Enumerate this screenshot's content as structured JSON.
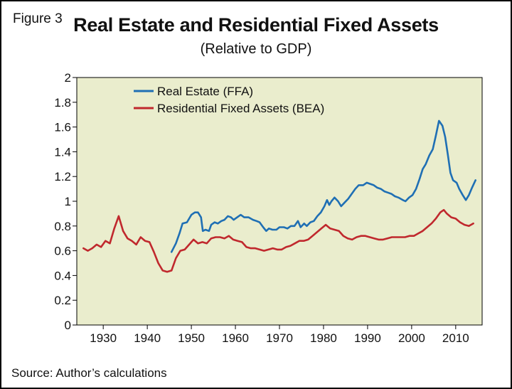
{
  "figure_label": "Figure 3",
  "title": "Real Estate and Residential Fixed Assets",
  "subtitle": "(Relative to GDP)",
  "source": "Source: Author’s calculations",
  "chart_data": {
    "type": "line",
    "ylim": [
      0,
      2
    ],
    "xlim": [
      1924,
      2016
    ],
    "y_ticks": [
      0,
      0.2,
      0.4,
      0.6,
      0.8,
      1,
      1.2,
      1.4,
      1.6,
      1.8,
      2
    ],
    "y_tick_labels": [
      "0",
      "0.2",
      "0.4",
      "0.6",
      "0.8",
      "1",
      "1.2",
      "1.4",
      "1.6",
      "1.8",
      "2"
    ],
    "x_ticks": [
      1930,
      1940,
      1950,
      1960,
      1970,
      1980,
      1990,
      2000,
      2010
    ],
    "x_tick_labels": [
      "1930",
      "1940",
      "1950",
      "1960",
      "1970",
      "1980",
      "1990",
      "2000",
      "2010"
    ],
    "legend_position": "top-left",
    "plot_background": "#eaedcd",
    "series": [
      {
        "name": "Real Estate (FFA)",
        "color": "#1f6fb4",
        "points": [
          [
            1945.5,
            0.59
          ],
          [
            1946.5,
            0.66
          ],
          [
            1947.3,
            0.74
          ],
          [
            1948,
            0.82
          ],
          [
            1949,
            0.83
          ],
          [
            1950,
            0.89
          ],
          [
            1950.8,
            0.91
          ],
          [
            1951.5,
            0.91
          ],
          [
            1952.2,
            0.87
          ],
          [
            1952.6,
            0.76
          ],
          [
            1953.2,
            0.77
          ],
          [
            1954,
            0.76
          ],
          [
            1954.5,
            0.81
          ],
          [
            1955.3,
            0.83
          ],
          [
            1956,
            0.82
          ],
          [
            1956.8,
            0.84
          ],
          [
            1957.5,
            0.85
          ],
          [
            1958.3,
            0.88
          ],
          [
            1959,
            0.87
          ],
          [
            1959.6,
            0.85
          ],
          [
            1960.4,
            0.87
          ],
          [
            1961.2,
            0.89
          ],
          [
            1962,
            0.87
          ],
          [
            1963,
            0.87
          ],
          [
            1964,
            0.85
          ],
          [
            1964.8,
            0.84
          ],
          [
            1965.5,
            0.83
          ],
          [
            1966.3,
            0.79
          ],
          [
            1967,
            0.76
          ],
          [
            1967.6,
            0.78
          ],
          [
            1968.4,
            0.77
          ],
          [
            1969.3,
            0.77
          ],
          [
            1970,
            0.79
          ],
          [
            1971,
            0.79
          ],
          [
            1971.8,
            0.78
          ],
          [
            1972.6,
            0.8
          ],
          [
            1973.4,
            0.8
          ],
          [
            1974.2,
            0.84
          ],
          [
            1974.8,
            0.79
          ],
          [
            1975.6,
            0.82
          ],
          [
            1976.2,
            0.8
          ],
          [
            1977,
            0.83
          ],
          [
            1977.8,
            0.84
          ],
          [
            1978.6,
            0.88
          ],
          [
            1979.4,
            0.91
          ],
          [
            1980.2,
            0.96
          ],
          [
            1980.8,
            1.01
          ],
          [
            1981.3,
            0.97
          ],
          [
            1981.8,
            1.0
          ],
          [
            1982.5,
            1.03
          ],
          [
            1983.3,
            1.0
          ],
          [
            1984,
            0.96
          ],
          [
            1984.8,
            0.99
          ],
          [
            1985.6,
            1.02
          ],
          [
            1986.4,
            1.06
          ],
          [
            1987.2,
            1.1
          ],
          [
            1988,
            1.13
          ],
          [
            1989,
            1.13
          ],
          [
            1989.8,
            1.15
          ],
          [
            1990.6,
            1.14
          ],
          [
            1991.4,
            1.13
          ],
          [
            1992.2,
            1.11
          ],
          [
            1993,
            1.1
          ],
          [
            1993.8,
            1.08
          ],
          [
            1994.6,
            1.07
          ],
          [
            1995.4,
            1.06
          ],
          [
            1996.2,
            1.04
          ],
          [
            1997,
            1.03
          ],
          [
            1998,
            1.01
          ],
          [
            1998.6,
            1.0
          ],
          [
            1999.4,
            1.03
          ],
          [
            2000.2,
            1.05
          ],
          [
            2001,
            1.1
          ],
          [
            2001.8,
            1.18
          ],
          [
            2002.5,
            1.26
          ],
          [
            2003.2,
            1.3
          ],
          [
            2004,
            1.37
          ],
          [
            2004.8,
            1.42
          ],
          [
            2005.5,
            1.53
          ],
          [
            2006.2,
            1.65
          ],
          [
            2007,
            1.61
          ],
          [
            2007.6,
            1.52
          ],
          [
            2008.2,
            1.38
          ],
          [
            2008.8,
            1.23
          ],
          [
            2009.4,
            1.17
          ],
          [
            2010.2,
            1.15
          ],
          [
            2010.8,
            1.1
          ],
          [
            2011.6,
            1.05
          ],
          [
            2012.3,
            1.01
          ],
          [
            2013,
            1.05
          ],
          [
            2013.7,
            1.11
          ],
          [
            2014.5,
            1.17
          ]
        ]
      },
      {
        "name": "Residential Fixed Assets (BEA)",
        "color": "#c0282d",
        "points": [
          [
            1925.5,
            0.62
          ],
          [
            1926.5,
            0.6
          ],
          [
            1927.5,
            0.62
          ],
          [
            1928.5,
            0.65
          ],
          [
            1929.5,
            0.63
          ],
          [
            1930.5,
            0.68
          ],
          [
            1931.5,
            0.66
          ],
          [
            1932.5,
            0.78
          ],
          [
            1933.5,
            0.88
          ],
          [
            1934.5,
            0.76
          ],
          [
            1935.5,
            0.7
          ],
          [
            1936.5,
            0.68
          ],
          [
            1937.5,
            0.65
          ],
          [
            1938.5,
            0.71
          ],
          [
            1939.5,
            0.68
          ],
          [
            1940.5,
            0.67
          ],
          [
            1941.5,
            0.59
          ],
          [
            1942.5,
            0.5
          ],
          [
            1943.5,
            0.44
          ],
          [
            1944.5,
            0.43
          ],
          [
            1945.5,
            0.44
          ],
          [
            1946.5,
            0.54
          ],
          [
            1947.5,
            0.6
          ],
          [
            1948.5,
            0.61
          ],
          [
            1949.5,
            0.65
          ],
          [
            1950.5,
            0.69
          ],
          [
            1951.5,
            0.66
          ],
          [
            1952.5,
            0.67
          ],
          [
            1953.5,
            0.66
          ],
          [
            1954.5,
            0.7
          ],
          [
            1955.5,
            0.71
          ],
          [
            1956.5,
            0.71
          ],
          [
            1957.5,
            0.7
          ],
          [
            1958.5,
            0.72
          ],
          [
            1959.5,
            0.69
          ],
          [
            1960.5,
            0.68
          ],
          [
            1961.5,
            0.67
          ],
          [
            1962.5,
            0.63
          ],
          [
            1963.5,
            0.62
          ],
          [
            1964.5,
            0.62
          ],
          [
            1965.5,
            0.61
          ],
          [
            1966.5,
            0.6
          ],
          [
            1967.5,
            0.61
          ],
          [
            1968.5,
            0.62
          ],
          [
            1969.5,
            0.61
          ],
          [
            1970.5,
            0.61
          ],
          [
            1971.5,
            0.63
          ],
          [
            1972.5,
            0.64
          ],
          [
            1973.5,
            0.66
          ],
          [
            1974.5,
            0.68
          ],
          [
            1975.5,
            0.68
          ],
          [
            1976.5,
            0.69
          ],
          [
            1977.5,
            0.72
          ],
          [
            1978.5,
            0.75
          ],
          [
            1979.5,
            0.78
          ],
          [
            1980.5,
            0.81
          ],
          [
            1981.5,
            0.78
          ],
          [
            1982.5,
            0.77
          ],
          [
            1983.5,
            0.76
          ],
          [
            1984.5,
            0.72
          ],
          [
            1985.5,
            0.7
          ],
          [
            1986.5,
            0.69
          ],
          [
            1987.5,
            0.71
          ],
          [
            1988.5,
            0.72
          ],
          [
            1989.5,
            0.72
          ],
          [
            1990.5,
            0.71
          ],
          [
            1991.5,
            0.7
          ],
          [
            1992.5,
            0.69
          ],
          [
            1993.5,
            0.69
          ],
          [
            1994.5,
            0.7
          ],
          [
            1995.5,
            0.71
          ],
          [
            1996.5,
            0.71
          ],
          [
            1997.5,
            0.71
          ],
          [
            1998.5,
            0.71
          ],
          [
            1999.5,
            0.72
          ],
          [
            2000.5,
            0.72
          ],
          [
            2001.5,
            0.74
          ],
          [
            2002.5,
            0.76
          ],
          [
            2003.5,
            0.79
          ],
          [
            2004.5,
            0.82
          ],
          [
            2005.5,
            0.86
          ],
          [
            2006.5,
            0.91
          ],
          [
            2007.3,
            0.93
          ],
          [
            2008,
            0.9
          ],
          [
            2009,
            0.87
          ],
          [
            2010,
            0.86
          ],
          [
            2011,
            0.83
          ],
          [
            2012,
            0.81
          ],
          [
            2013,
            0.8
          ],
          [
            2014,
            0.82
          ]
        ]
      }
    ]
  }
}
